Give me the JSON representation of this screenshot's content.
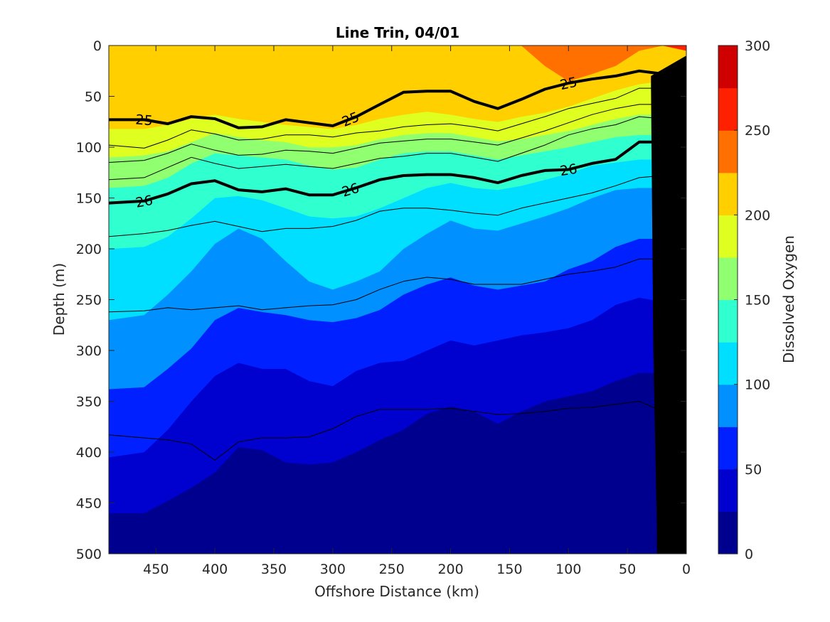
{
  "chart_data": {
    "type": "contourf",
    "title": "Line Trin, 04/01",
    "xlabel": "Offshore Distance (km)",
    "ylabel": "Depth (m)",
    "colorbar_label": "Dissolved Oxygen",
    "xlim": [
      490,
      0
    ],
    "x_reversed": true,
    "ylim": [
      0,
      500
    ],
    "y_reversed": true,
    "x_ticks": [
      450,
      400,
      350,
      300,
      250,
      200,
      150,
      100,
      50,
      0
    ],
    "y_ticks": [
      0,
      50,
      100,
      150,
      200,
      250,
      300,
      350,
      400,
      450,
      500
    ],
    "colorbar_ticks": [
      0,
      50,
      100,
      150,
      200,
      250,
      300
    ],
    "colorbar_range": [
      0,
      300
    ],
    "levels": [
      {
        "min": 0,
        "max": 25,
        "color": "#00008f"
      },
      {
        "min": 25,
        "max": 50,
        "color": "#0000cf"
      },
      {
        "min": 50,
        "max": 75,
        "color": "#0020ff"
      },
      {
        "min": 75,
        "max": 100,
        "color": "#0090ff"
      },
      {
        "min": 100,
        "max": 125,
        "color": "#00dfff"
      },
      {
        "min": 125,
        "max": 150,
        "color": "#30ffcf"
      },
      {
        "min": 150,
        "max": 175,
        "color": "#90ff70"
      },
      {
        "min": 175,
        "max": 200,
        "color": "#dfff20"
      },
      {
        "min": 200,
        "max": 225,
        "color": "#ffcf00"
      },
      {
        "min": 225,
        "max": 250,
        "color": "#ff7000"
      },
      {
        "min": 250,
        "max": 275,
        "color": "#ff2000"
      },
      {
        "min": 275,
        "max": 300,
        "color": "#cf0000"
      }
    ],
    "oxygen_isolines": {
      "x": [
        490,
        460,
        440,
        420,
        400,
        380,
        360,
        340,
        320,
        300,
        280,
        260,
        240,
        220,
        200,
        180,
        160,
        140,
        120,
        100,
        80,
        60,
        40,
        20,
        0
      ],
      "boundaries": [
        {
          "level": 25,
          "depth": [
            500,
            500,
            500,
            500,
            500,
            500,
            500,
            500,
            500,
            500,
            500,
            500,
            500,
            500,
            500,
            500,
            500,
            500,
            500,
            500,
            500,
            500,
            500,
            500,
            500
          ]
        },
        {
          "level": 50,
          "depth": [
            460,
            460,
            448,
            435,
            420,
            395,
            398,
            410,
            412,
            410,
            400,
            388,
            378,
            362,
            355,
            360,
            372,
            360,
            350,
            345,
            340,
            330,
            322,
            322,
            322
          ]
        },
        {
          "level": 75,
          "depth": [
            405,
            400,
            378,
            350,
            325,
            312,
            318,
            318,
            330,
            335,
            320,
            312,
            310,
            300,
            290,
            295,
            290,
            285,
            282,
            278,
            270,
            255,
            248,
            252,
            252
          ]
        },
        {
          "level": 100,
          "depth": [
            338,
            336,
            318,
            298,
            270,
            258,
            262,
            265,
            270,
            272,
            268,
            260,
            245,
            235,
            228,
            236,
            240,
            236,
            232,
            220,
            212,
            198,
            190,
            190,
            190
          ]
        },
        {
          "level": 125,
          "depth": [
            270,
            265,
            245,
            222,
            195,
            180,
            190,
            212,
            232,
            240,
            232,
            222,
            200,
            185,
            172,
            180,
            182,
            175,
            168,
            160,
            150,
            142,
            140,
            140,
            140
          ]
        },
        {
          "level": 150,
          "depth": [
            200,
            198,
            188,
            170,
            150,
            148,
            152,
            160,
            168,
            170,
            168,
            160,
            150,
            140,
            135,
            140,
            142,
            138,
            132,
            126,
            118,
            115,
            112,
            112,
            112
          ]
        },
        {
          "level": 175,
          "depth": [
            140,
            138,
            130,
            116,
            106,
            108,
            110,
            112,
            118,
            122,
            120,
            112,
            106,
            104,
            104,
            108,
            112,
            108,
            104,
            100,
            95,
            90,
            88,
            88,
            88
          ]
        },
        {
          "level": 200,
          "depth": [
            110,
            108,
            104,
            95,
            86,
            90,
            93,
            95,
            100,
            100,
            98,
            92,
            88,
            86,
            86,
            90,
            94,
            92,
            88,
            84,
            78,
            72,
            68,
            68,
            68
          ]
        },
        {
          "level": 225,
          "depth": [
            82,
            82,
            78,
            72,
            68,
            72,
            75,
            78,
            80,
            82,
            78,
            72,
            68,
            65,
            68,
            72,
            75,
            70,
            66,
            60,
            52,
            44,
            38,
            35,
            35
          ]
        },
        {
          "level": 250,
          "depth": [
            0,
            0,
            0,
            0,
            0,
            0,
            0,
            0,
            0,
            0,
            0,
            0,
            0,
            0,
            0,
            0,
            0,
            0,
            20,
            35,
            28,
            20,
            5,
            0,
            0
          ]
        },
        {
          "level": 275,
          "depth": [
            0,
            0,
            0,
            0,
            0,
            0,
            0,
            0,
            0,
            0,
            0,
            0,
            0,
            0,
            0,
            0,
            0,
            0,
            0,
            0,
            0,
            0,
            0,
            0,
            5
          ]
        }
      ]
    },
    "density_contours": {
      "x": [
        490,
        460,
        440,
        420,
        400,
        380,
        360,
        340,
        320,
        300,
        280,
        260,
        240,
        220,
        200,
        180,
        160,
        140,
        120,
        100,
        80,
        60,
        40,
        20,
        0
      ],
      "lines": [
        {
          "label": "25",
          "bold": true,
          "depth": [
            73,
            73,
            77,
            70,
            72,
            81,
            80,
            73,
            76,
            79,
            70,
            58,
            46,
            45,
            45,
            55,
            62,
            53,
            43,
            37,
            33,
            30,
            25,
            28,
            32
          ]
        },
        {
          "label": "26",
          "bold": true,
          "depth": [
            155,
            153,
            146,
            136,
            133,
            142,
            144,
            141,
            147,
            147,
            140,
            132,
            128,
            127,
            127,
            130,
            135,
            128,
            123,
            122,
            116,
            112,
            95,
            95,
            103
          ]
        },
        {
          "label": "",
          "bold": false,
          "depth": [
            98,
            101,
            93,
            83,
            87,
            93,
            92,
            88,
            88,
            90,
            86,
            84,
            80,
            78,
            77,
            80,
            84,
            77,
            70,
            62,
            57,
            52,
            42,
            42,
            45
          ]
        },
        {
          "label": "",
          "bold": false,
          "depth": [
            115,
            113,
            106,
            97,
            103,
            108,
            107,
            103,
            104,
            106,
            101,
            96,
            94,
            92,
            92,
            95,
            98,
            91,
            84,
            76,
            68,
            62,
            58,
            58,
            58
          ]
        },
        {
          "label": "",
          "bold": false,
          "depth": [
            132,
            130,
            120,
            110,
            116,
            121,
            119,
            117,
            119,
            121,
            116,
            111,
            109,
            106,
            106,
            110,
            114,
            106,
            98,
            88,
            82,
            78,
            70,
            72,
            72
          ]
        },
        {
          "label": "",
          "bold": false,
          "depth": [
            188,
            185,
            182,
            177,
            173,
            178,
            183,
            180,
            180,
            178,
            172,
            163,
            160,
            160,
            162,
            165,
            167,
            160,
            155,
            150,
            145,
            138,
            130,
            128,
            128
          ]
        },
        {
          "label": "",
          "bold": false,
          "depth": [
            262,
            261,
            258,
            260,
            258,
            256,
            260,
            258,
            256,
            255,
            250,
            240,
            232,
            228,
            230,
            235,
            235,
            235,
            230,
            225,
            222,
            218,
            210,
            210,
            210
          ]
        },
        {
          "label": "",
          "bold": false,
          "depth": [
            383,
            386,
            388,
            392,
            408,
            390,
            386,
            386,
            385,
            377,
            365,
            358,
            358,
            358,
            357,
            360,
            363,
            362,
            360,
            357,
            356,
            353,
            350,
            360,
            360
          ]
        }
      ]
    },
    "seafloor": {
      "x": [
        0,
        25,
        25,
        28,
        30,
        30,
        0
      ],
      "depth": [
        500,
        500,
        475,
        300,
        40,
        30,
        10
      ]
    }
  }
}
